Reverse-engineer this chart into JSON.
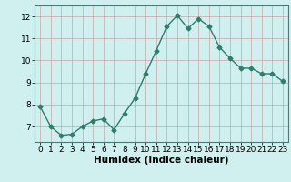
{
  "x": [
    0,
    1,
    2,
    3,
    4,
    5,
    6,
    7,
    8,
    9,
    10,
    11,
    12,
    13,
    14,
    15,
    16,
    17,
    18,
    19,
    20,
    21,
    22,
    23
  ],
  "y": [
    7.9,
    7.0,
    6.6,
    6.65,
    7.0,
    7.25,
    7.35,
    6.85,
    7.6,
    8.3,
    9.4,
    10.45,
    11.55,
    12.05,
    11.45,
    11.9,
    11.55,
    10.6,
    10.1,
    9.65,
    9.65,
    9.4,
    9.4,
    9.05
  ],
  "line_color": "#2e7d6e",
  "marker": "D",
  "markersize": 2.5,
  "linewidth": 1.0,
  "bg_color": "#d0f0f0",
  "grid_color_v": "#c8a8a8",
  "grid_color_h": "#c8a8a8",
  "xlabel": "Humidex (Indice chaleur)",
  "xlim": [
    -0.5,
    23.5
  ],
  "ylim": [
    6.3,
    12.5
  ],
  "yticks": [
    7,
    8,
    9,
    10,
    11,
    12
  ],
  "xtick_labels": [
    "0",
    "1",
    "2",
    "3",
    "4",
    "5",
    "6",
    "7",
    "8",
    "9",
    "10",
    "11",
    "12",
    "13",
    "14",
    "15",
    "16",
    "17",
    "18",
    "19",
    "20",
    "21",
    "22",
    "23"
  ],
  "xlabel_fontsize": 7.5,
  "tick_fontsize": 6.5
}
